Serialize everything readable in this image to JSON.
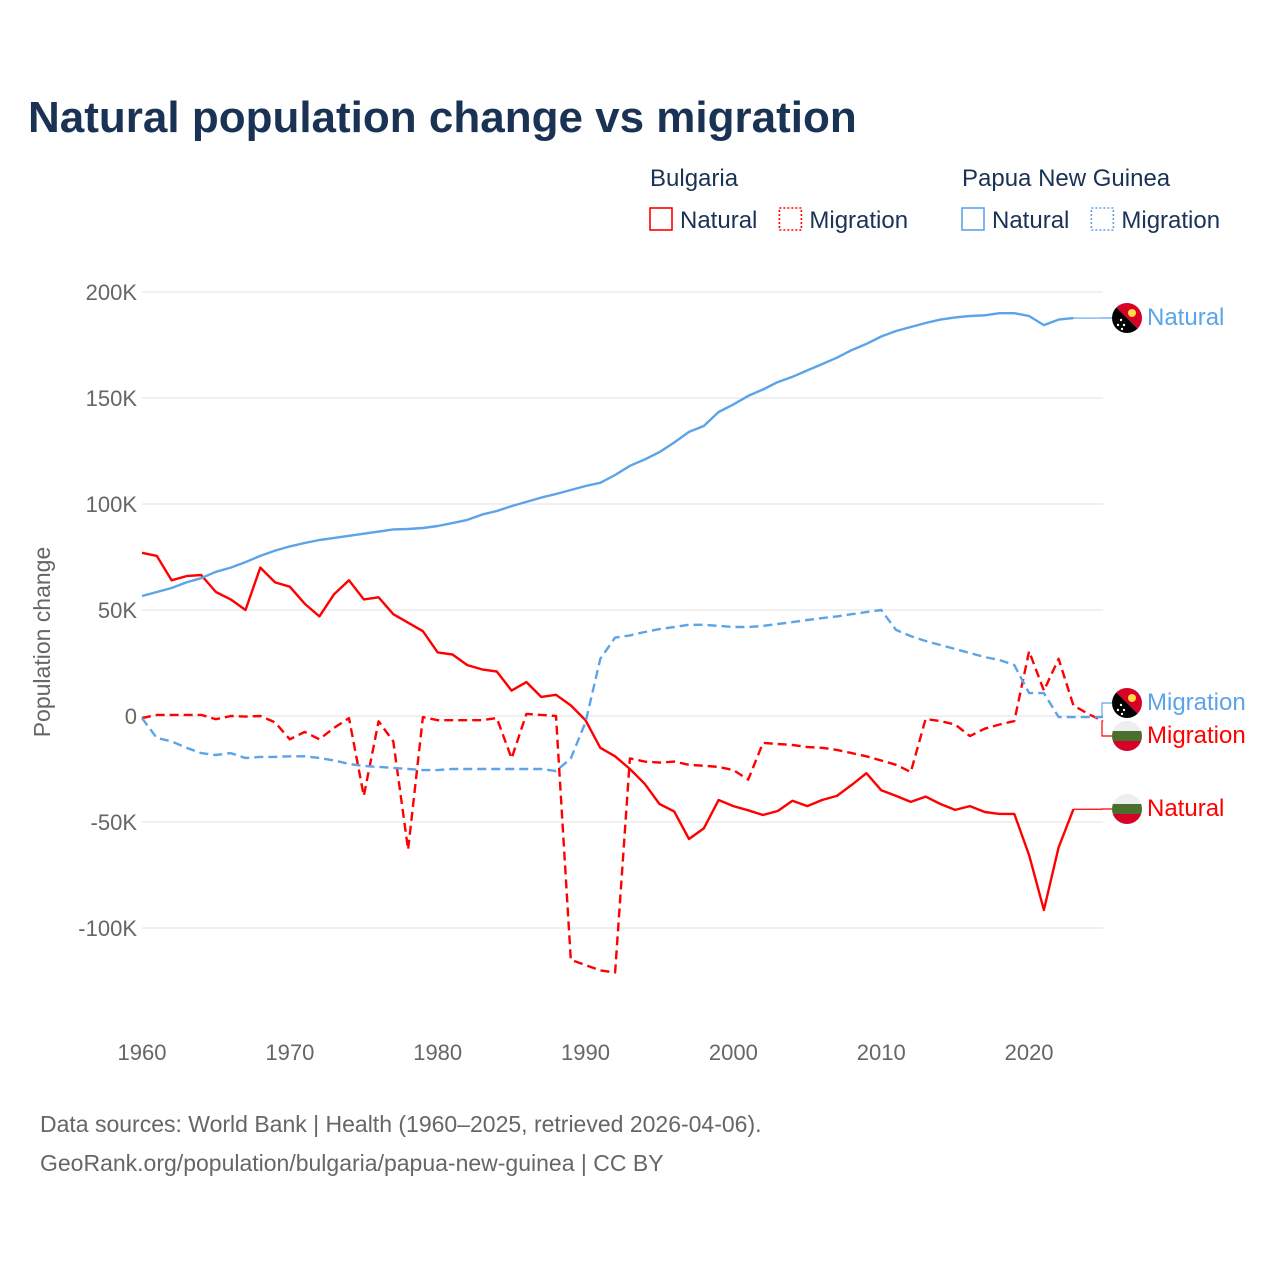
{
  "chart_data": {
    "type": "line",
    "title": "Natural population change vs migration",
    "xlabel": "",
    "ylabel": "Population change",
    "xlim": [
      1960,
      2025
    ],
    "ylim": [
      -130000,
      210000
    ],
    "x_ticks": [
      1960,
      1970,
      1980,
      1990,
      2000,
      2010,
      2020
    ],
    "x_tick_labels": [
      "1960",
      "1970",
      "1980",
      "1990",
      "2000",
      "2010",
      "2020"
    ],
    "y_ticks": [
      -100000,
      -50000,
      0,
      50000,
      100000,
      150000,
      200000
    ],
    "y_tick_labels": [
      "-100K",
      "-50K",
      "0",
      "50K",
      "100K",
      "150K",
      "200K"
    ],
    "grid": true,
    "legend": {
      "placement": "top-right",
      "groups": [
        {
          "country": "Bulgaria",
          "items": [
            "Natural",
            "Migration"
          ]
        },
        {
          "country": "Papua New Guinea",
          "items": [
            "Natural",
            "Migration"
          ]
        }
      ]
    },
    "colors": {
      "Bulgaria": "#ff0000",
      "Papua New Guinea": "#5ba4e8"
    },
    "series": [
      {
        "name": "Bulgaria Natural",
        "country": "Bulgaria",
        "kind": "Natural",
        "end_label": "Natural",
        "start": 1960,
        "values": [
          77,
          75.5,
          64,
          66,
          66.5,
          58.5,
          55,
          50,
          70,
          63,
          61,
          53,
          47,
          57.5,
          64,
          55,
          56,
          48,
          44,
          40,
          30,
          29,
          24,
          22,
          21,
          12,
          16,
          9,
          10,
          5,
          -2,
          -15,
          -19,
          -25,
          -32,
          -41.5,
          -45,
          -58,
          -53,
          -39.6,
          -42.5,
          -44.5,
          -46.7,
          -44.8,
          -40,
          -42.5,
          -39.6,
          -37.7,
          -32.5,
          -27,
          -35,
          -37.7,
          -40.5,
          -38,
          -41.5,
          -44.3,
          -42.5,
          -45.3,
          -46.2,
          -46.2,
          -65.6,
          -91.5,
          -62,
          -44
        ]
      },
      {
        "name": "Bulgaria Migration",
        "country": "Bulgaria",
        "kind": "Migration",
        "end_label": "Migration",
        "start": 1960,
        "values": [
          -1,
          0.5,
          0.5,
          0.5,
          0.5,
          -1.5,
          0,
          -0.3,
          0,
          -3,
          -11,
          -7.5,
          -11,
          -5.5,
          -1,
          -37.7,
          -2.5,
          -12,
          -63,
          -0.5,
          -2,
          -2,
          -2,
          -2,
          -1,
          -20,
          1,
          0.5,
          0,
          -115,
          -117.5,
          -120,
          -121,
          -20,
          -21.5,
          -22,
          -21.5,
          -23,
          -23.5,
          -24,
          -25.5,
          -30,
          -12.7,
          -13.2,
          -13.7,
          -14.6,
          -15,
          -16,
          -17.5,
          -19,
          -21,
          -23,
          -26.4,
          -1.4,
          -2.4,
          -4,
          -9.5,
          -6,
          -4,
          -2.4,
          30.5,
          12,
          27,
          5,
          1,
          -2.4
        ]
      },
      {
        "name": "Papua New Guinea Natural",
        "country": "Papua New Guinea",
        "kind": "Natural",
        "end_label": "Natural",
        "start": 1960,
        "values": [
          56.6,
          58.5,
          60.4,
          63,
          65,
          68,
          70,
          72.6,
          75.5,
          78,
          80,
          81.6,
          83,
          84,
          85,
          86,
          87,
          88,
          88.2,
          88.7,
          89.6,
          91,
          92.5,
          95,
          96.7,
          99,
          101,
          103,
          104.7,
          106.6,
          108.5,
          110,
          113.7,
          118,
          121,
          124.5,
          129,
          134,
          136.8,
          143.4,
          147,
          151,
          154,
          157.5,
          160,
          163,
          166,
          169,
          172.6,
          175.5,
          179,
          181.6,
          183.5,
          185.4,
          187,
          188,
          188.7,
          189,
          190,
          190,
          188.7,
          184.4,
          187,
          187.7
        ]
      },
      {
        "name": "Papua New Guinea Migration",
        "country": "Papua New Guinea",
        "kind": "Migration",
        "end_label": "Migration",
        "start": 1960,
        "values": [
          -1,
          -10.4,
          -12,
          -15,
          -17.5,
          -18.4,
          -17.5,
          -19.8,
          -19.3,
          -19.3,
          -19,
          -19,
          -19.8,
          -21,
          -22.6,
          -23.6,
          -24,
          -24.5,
          -25,
          -25.5,
          -25.5,
          -25,
          -25,
          -25,
          -25,
          -25,
          -25,
          -25,
          -26,
          -20,
          -3,
          27,
          37,
          38,
          39.6,
          41,
          42,
          43,
          43,
          42.5,
          42,
          42,
          42.5,
          43.4,
          44.3,
          45.3,
          46.2,
          47,
          48,
          49,
          50,
          40.6,
          37.7,
          35.4,
          33.5,
          31.6,
          29.7,
          27.8,
          26.4,
          24,
          10.8,
          10.8,
          -0.5,
          -0.5,
          -0.5,
          -0.5
        ]
      }
    ],
    "value_unit": "thousands",
    "source_lines": [
      "Data sources: World Bank | Health (1960–2025, retrieved 2026-04-06).",
      "GeoRank.org/population/bulgaria/papua-new-guinea | CC BY"
    ]
  }
}
